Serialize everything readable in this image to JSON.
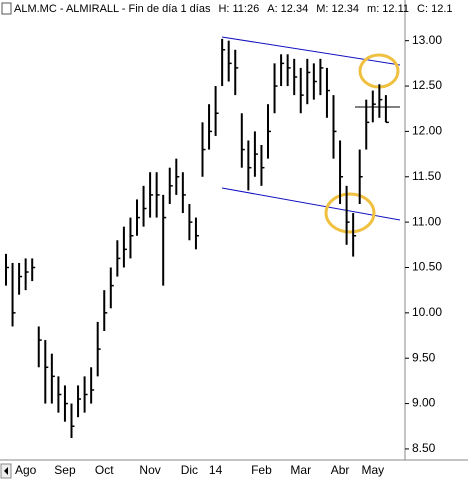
{
  "chart_data": {
    "type": "ohlc",
    "title": "ALM.MC - ALMIRALL - Fin de día 1 días",
    "header_fields": [
      "H: 11:26",
      "A: 12.34",
      "M: 12.34",
      "m: 12.11",
      "C: 12.1"
    ],
    "categories": [
      null,
      null,
      null,
      "Ago",
      null,
      null,
      null,
      null,
      null,
      "Sep",
      null,
      null,
      null,
      null,
      null,
      "Oct",
      null,
      null,
      null,
      null,
      null,
      null,
      "Nov",
      null,
      null,
      null,
      null,
      null,
      "Dic",
      null,
      null,
      null,
      "14",
      null,
      null,
      null,
      null,
      null,
      null,
      "Feb",
      null,
      null,
      null,
      null,
      null,
      "Mar",
      null,
      null,
      null,
      null,
      null,
      "Abr",
      null,
      null,
      null,
      null,
      "May",
      null,
      null
    ],
    "series": [
      {
        "name": "high",
        "values": [
          10.65,
          10.55,
          10.55,
          10.6,
          10.6,
          9.85,
          9.7,
          9.55,
          9.3,
          9.2,
          9.0,
          9.2,
          9.3,
          9.4,
          9.9,
          10.25,
          10.5,
          10.8,
          10.95,
          11.05,
          11.25,
          11.4,
          11.55,
          11.55,
          11.3,
          11.6,
          11.7,
          11.55,
          11.2,
          11.05,
          12.1,
          12.3,
          12.5,
          13.02,
          13.0,
          12.9,
          12.2,
          11.9,
          12.0,
          11.85,
          12.3,
          12.75,
          12.85,
          12.85,
          12.8,
          12.7,
          12.8,
          12.75,
          12.8,
          12.7,
          12.4,
          11.9,
          11.4,
          11.1,
          11.8,
          12.35,
          12.45,
          12.52,
          12.4
        ]
      },
      {
        "name": "low",
        "values": [
          10.3,
          9.85,
          10.2,
          10.25,
          10.35,
          9.4,
          9.0,
          9.0,
          8.9,
          8.8,
          8.62,
          8.85,
          8.9,
          9.0,
          9.3,
          9.8,
          10.05,
          10.4,
          10.5,
          10.6,
          10.85,
          10.95,
          11.05,
          11.05,
          10.3,
          11.2,
          11.3,
          11.1,
          10.8,
          10.7,
          11.5,
          11.8,
          11.95,
          12.5,
          12.55,
          12.4,
          11.6,
          11.35,
          11.5,
          11.4,
          11.7,
          12.2,
          12.5,
          12.5,
          12.4,
          12.2,
          12.3,
          12.35,
          12.4,
          12.15,
          11.7,
          11.2,
          10.75,
          10.62,
          11.2,
          11.8,
          12.1,
          12.15,
          12.1
        ]
      },
      {
        "name": "close",
        "values": [
          10.5,
          10.0,
          10.4,
          10.45,
          10.5,
          9.7,
          9.4,
          9.3,
          9.1,
          9.0,
          8.75,
          9.05,
          9.1,
          9.15,
          9.6,
          10.0,
          10.3,
          10.6,
          10.7,
          10.85,
          11.05,
          11.15,
          11.3,
          11.3,
          11.05,
          11.4,
          11.5,
          11.3,
          11.0,
          10.85,
          11.8,
          12.0,
          12.2,
          12.9,
          12.75,
          12.7,
          11.8,
          11.6,
          11.75,
          11.6,
          12.0,
          12.5,
          12.75,
          12.7,
          12.6,
          12.4,
          12.65,
          12.55,
          12.7,
          12.45,
          12.0,
          11.5,
          11.0,
          10.85,
          11.5,
          12.1,
          12.3,
          12.35,
          12.1
        ]
      }
    ],
    "color": "#000000",
    "ylim": [
      8.4,
      13.25
    ],
    "yticks": [
      {
        "value": 13,
        "label": "13.00"
      },
      {
        "value": 12.5,
        "label": "12.50"
      },
      {
        "value": 12,
        "label": "12.00"
      },
      {
        "value": 11.5,
        "label": "11.50"
      },
      {
        "value": 11,
        "label": "11.00"
      },
      {
        "value": 10.5,
        "label": "10.50"
      },
      {
        "value": 10,
        "label": "10.00"
      },
      {
        "value": 9.5,
        "label": "9.50"
      },
      {
        "value": 9,
        "label": "9.00"
      },
      {
        "value": 8.5,
        "label": "8.50"
      }
    ]
  }
}
